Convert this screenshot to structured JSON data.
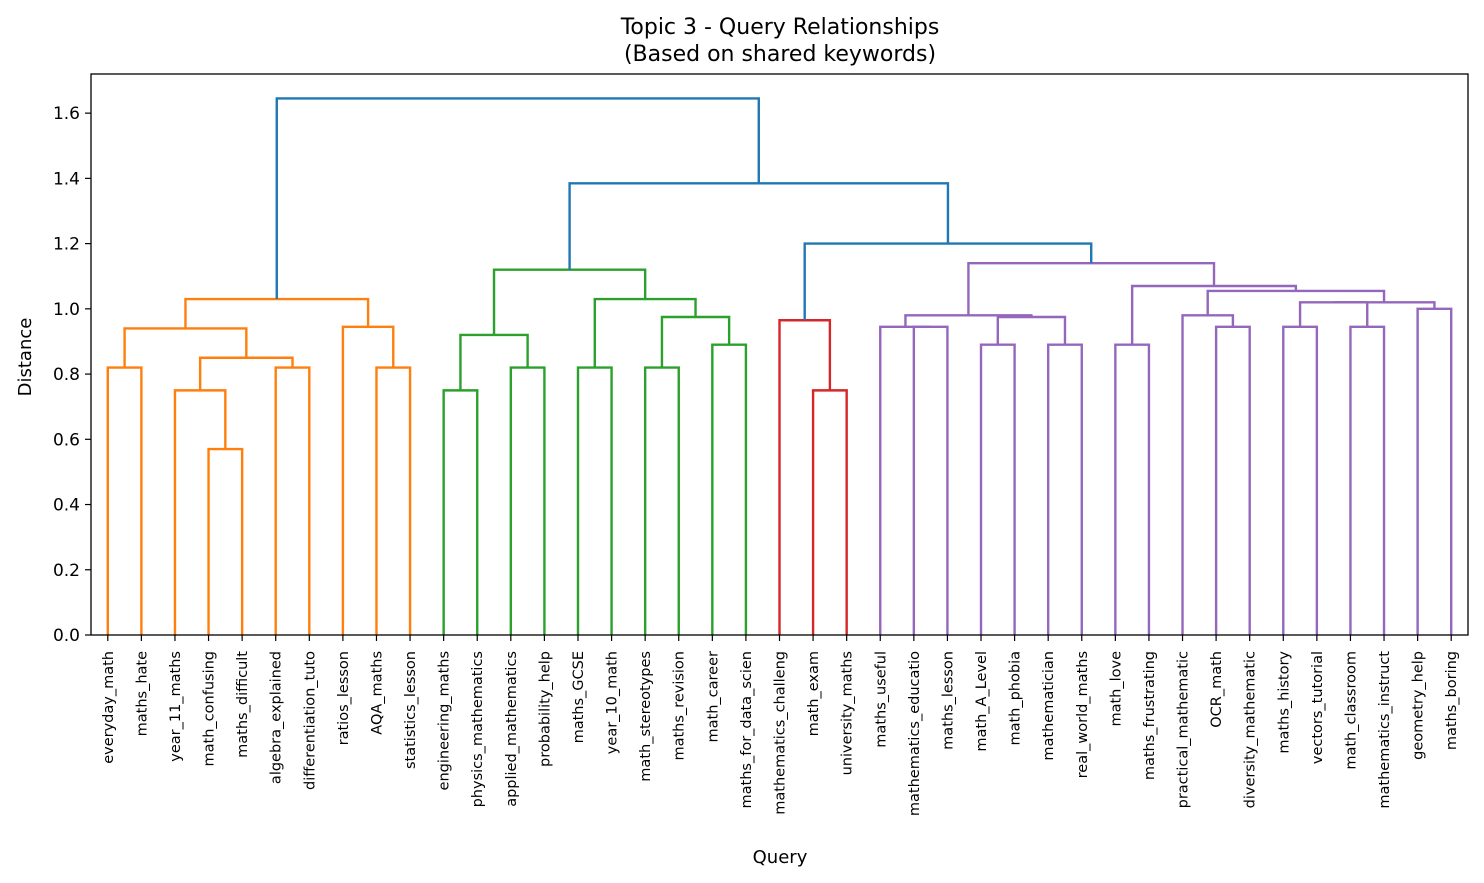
{
  "chart_data": {
    "type": "dendrogram",
    "title": "Topic 3 - Query Relationships",
    "subtitle": "(Based on shared keywords)",
    "xlabel": "Query",
    "ylabel": "Distance",
    "ylim": [
      0,
      1.72
    ],
    "yticks": [
      "0.0",
      "0.2",
      "0.4",
      "0.6",
      "0.8",
      "1.0",
      "1.2",
      "1.4",
      "1.6"
    ],
    "colors": {
      "orange": "#ff7f0e",
      "green": "#2ca02c",
      "red": "#d62728",
      "purple": "#9467bd",
      "blue": "#1f77b4"
    },
    "leaves": [
      "everyday_math",
      "maths_hate",
      "year_11_maths",
      "math_confusing",
      "maths_difficult",
      "algebra_explained",
      "differentiation_tuto",
      "ratios_lesson",
      "AQA_maths",
      "statistics_lesson",
      "engineering_maths",
      "physics_mathematics",
      "applied_mathematics",
      "probability_help",
      "maths_GCSE",
      "year_10_math",
      "math_stereotypes",
      "maths_revision",
      "math_career",
      "maths_for_data_scien",
      "mathematics_challeng",
      "math_exam",
      "university_maths",
      "maths_useful",
      "mathematics_educatio",
      "maths_lesson",
      "math_A_Level",
      "math_phobia",
      "mathematician",
      "real_world_maths",
      "math_love",
      "maths_frustrating",
      "practical_mathematic",
      "OCR_math",
      "diversity_mathematic",
      "maths_history",
      "vectors_tutorial",
      "math_classroom",
      "mathematics_instruct",
      "geometry_help",
      "maths_boring"
    ],
    "links": [
      {
        "left": 0,
        "right": 1,
        "height": 0.82,
        "color": "orange"
      },
      {
        "left": 3,
        "right": 4,
        "height": 0.57,
        "color": "orange"
      },
      {
        "left": 2,
        "right": "m1",
        "height": 0.75,
        "color": "orange",
        "id": "m2"
      },
      {
        "left": 5,
        "right": 6,
        "height": 0.82,
        "color": "orange",
        "id": "m3"
      },
      {
        "left": "m2",
        "right": "m3",
        "height": 0.85,
        "color": "orange",
        "id": "m4"
      },
      {
        "left": "m0",
        "right": "m4",
        "height": 0.94,
        "color": "orange",
        "id": "m5"
      },
      {
        "left": 8,
        "right": 9,
        "height": 0.82,
        "color": "orange",
        "id": "m6"
      },
      {
        "left": 7,
        "right": "m6",
        "height": 0.945,
        "color": "orange",
        "id": "m7"
      },
      {
        "left": "m5",
        "right": "m7",
        "height": 1.03,
        "color": "orange",
        "id": "m8"
      },
      {
        "left": 10,
        "right": 11,
        "height": 0.75,
        "color": "green",
        "id": "m9"
      },
      {
        "left": 12,
        "right": 13,
        "height": 0.82,
        "color": "green",
        "id": "m10"
      },
      {
        "left": "m9",
        "right": "m10",
        "height": 0.92,
        "color": "green",
        "id": "m11"
      },
      {
        "left": 14,
        "right": 15,
        "height": 0.82,
        "color": "green",
        "id": "m12"
      },
      {
        "left": 16,
        "right": 17,
        "height": 0.82,
        "color": "green",
        "id": "m13"
      },
      {
        "left": 18,
        "right": 19,
        "height": 0.89,
        "color": "green",
        "id": "m14"
      },
      {
        "left": "m13",
        "right": "m14",
        "height": 0.975,
        "color": "green",
        "id": "m15"
      },
      {
        "left": "m12",
        "right": "m15",
        "height": 1.03,
        "color": "green",
        "id": "m16"
      },
      {
        "left": "m11",
        "right": "m16",
        "height": 1.12,
        "color": "green",
        "id": "m17"
      },
      {
        "left": 21,
        "right": 22,
        "height": 0.75,
        "color": "red",
        "id": "m18"
      },
      {
        "left": 20,
        "right": "m18",
        "height": 0.965,
        "color": "red",
        "id": "m19"
      },
      {
        "left": 24,
        "right": 25,
        "height": 0.945,
        "color": "purple",
        "id": "m20"
      },
      {
        "left": 23,
        "right": "m20",
        "height": 0.945,
        "color": "purple",
        "id": "m21"
      },
      {
        "left": 26,
        "right": 27,
        "height": 0.89,
        "color": "purple",
        "id": "m22"
      },
      {
        "left": 28,
        "right": 29,
        "height": 0.89,
        "color": "purple",
        "id": "m23"
      },
      {
        "left": "m22",
        "right": "m23",
        "height": 0.975,
        "color": "purple",
        "id": "m24"
      },
      {
        "left": "m21",
        "right": "m24",
        "height": 0.98,
        "color": "purple",
        "id": "m25"
      },
      {
        "left": 30,
        "right": 31,
        "height": 0.89,
        "color": "purple",
        "id": "m26"
      },
      {
        "left": 33,
        "right": 34,
        "height": 0.945,
        "color": "purple",
        "id": "m27"
      },
      {
        "left": 32,
        "right": "m27",
        "height": 0.98,
        "color": "purple",
        "id": "m28"
      },
      {
        "left": 35,
        "right": 36,
        "height": 0.945,
        "color": "purple",
        "id": "m29"
      },
      {
        "left": 37,
        "right": 38,
        "height": 0.945,
        "color": "purple",
        "id": "m30"
      },
      {
        "left": "m29",
        "right": "m30",
        "height": 1.02,
        "color": "purple",
        "id": "m31"
      },
      {
        "left": 39,
        "right": 40,
        "height": 1.0,
        "color": "purple",
        "id": "m32"
      },
      {
        "left": "m31",
        "right": "m32",
        "height": 1.02,
        "color": "purple",
        "id": "m33"
      },
      {
        "left": "m28",
        "right": "m33",
        "height": 1.055,
        "color": "purple",
        "id": "m34"
      },
      {
        "left": "m26",
        "right": "m34",
        "height": 1.07,
        "color": "purple",
        "id": "m35"
      },
      {
        "left": "m25",
        "right": "m35",
        "height": 1.14,
        "color": "purple",
        "id": "m36"
      },
      {
        "left": "m19",
        "right": "m36",
        "height": 1.2,
        "color": "blue",
        "id": "m37"
      },
      {
        "left": "m17",
        "right": "m37",
        "height": 1.385,
        "color": "blue",
        "id": "m38"
      },
      {
        "left": "m8",
        "right": "m38",
        "height": 1.645,
        "color": "blue",
        "id": "m39"
      }
    ]
  }
}
